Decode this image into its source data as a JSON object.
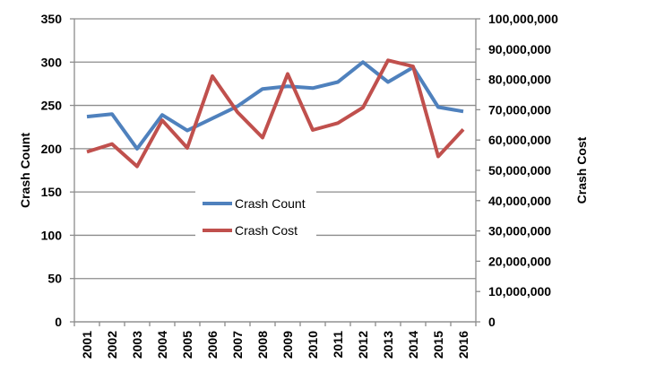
{
  "chart_data": {
    "type": "line",
    "title": "",
    "categories": [
      "2001",
      "2002",
      "2003",
      "2004",
      "2005",
      "2006",
      "2007",
      "2008",
      "2009",
      "2010",
      "2011",
      "2012",
      "2013",
      "2014",
      "2015",
      "2016"
    ],
    "series": [
      {
        "name": "Crash Count",
        "axis": "left",
        "color": "#4F81BD",
        "values": [
          237,
          240,
          200,
          239,
          221,
          235,
          249,
          269,
          272,
          270,
          277,
          300,
          277,
          294,
          248,
          243
        ]
      },
      {
        "name": "Crash Cost",
        "axis": "right",
        "color": "#C0504D",
        "values": [
          56100000,
          58700000,
          51300000,
          66500000,
          57400000,
          81100000,
          69200000,
          60800000,
          81800000,
          63300000,
          65600000,
          70700000,
          86300000,
          84300000,
          54600000,
          63500000
        ]
      }
    ],
    "ylabel": "Crash Count",
    "ylabel_right": "Crash Cost",
    "ylim": [
      0,
      350
    ],
    "ylim_right": [
      0,
      100000000
    ],
    "yticks": [
      "0",
      "50",
      "100",
      "150",
      "200",
      "250",
      "300",
      "350"
    ],
    "yticks_right": [
      "0",
      "10,000,000",
      "20,000,000",
      "30,000,000",
      "40,000,000",
      "50,000,000",
      "60,000,000",
      "70,000,000",
      "80,000,000",
      "90,000,000",
      "100,000,000"
    ],
    "grid": true,
    "legend": "center"
  }
}
